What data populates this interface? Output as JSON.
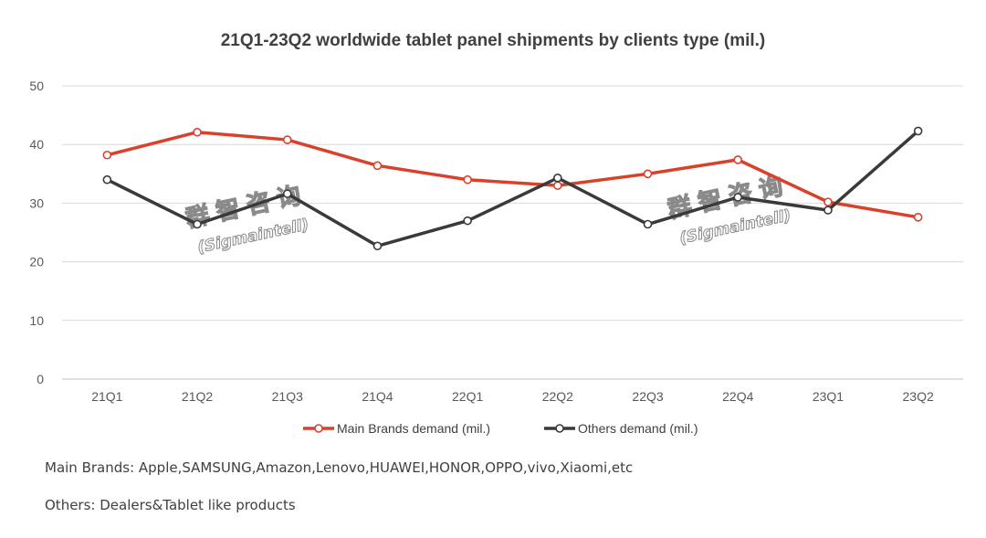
{
  "chart_data": {
    "type": "line",
    "title": "21Q1-23Q2 worldwide tablet panel shipments by clients type (mil.)",
    "categories": [
      "21Q1",
      "21Q2",
      "21Q3",
      "21Q4",
      "22Q1",
      "22Q2",
      "22Q3",
      "22Q4",
      "23Q1",
      "23Q2"
    ],
    "y_ticks": [
      "0",
      "10",
      "20",
      "30",
      "40",
      "50"
    ],
    "ylim": [
      0,
      50
    ],
    "grid": true,
    "legend_position": "bottom",
    "series": [
      {
        "name": "Main Brands demand (mil.)",
        "color": "#d9412b",
        "values": [
          38.2,
          42.1,
          40.8,
          36.4,
          34.0,
          33.0,
          35.0,
          37.4,
          30.2,
          27.6
        ]
      },
      {
        "name": "Others demand (mil.)",
        "color": "#3a3a3a",
        "values": [
          34.0,
          26.4,
          31.6,
          22.7,
          27.0,
          34.3,
          26.4,
          31.0,
          28.8,
          42.3
        ]
      }
    ]
  },
  "watermark": {
    "chinese": "群智咨询",
    "english": "(Sigmaintell)"
  },
  "notes": {
    "main_brands": "Main Brands: Apple,SAMSUNG,Amazon,Lenovo,HUAWEI,HONOR,OPPO,vivo,Xiaomi,etc",
    "others": "Others: Dealers&Tablet like products"
  }
}
